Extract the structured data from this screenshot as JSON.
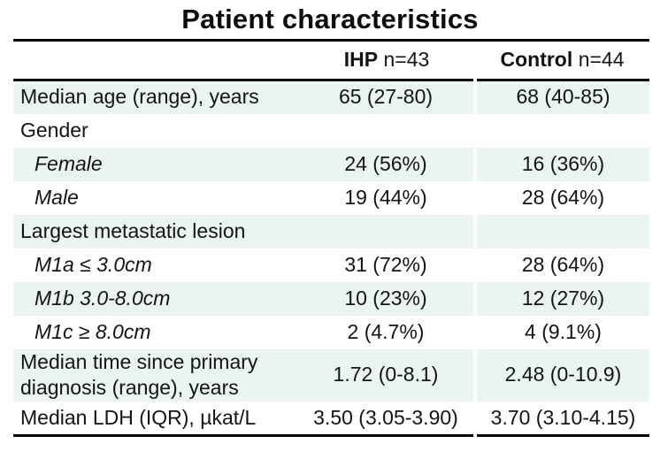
{
  "title": "Patient characteristics",
  "colors": {
    "row_highlight": "#eaf4f3",
    "text": "#141414",
    "rule": "#000000"
  },
  "chart_data": {
    "type": "table",
    "title": "Patient characteristics",
    "columns": [
      {
        "bold": "",
        "rest": ""
      },
      {
        "bold": "IHP",
        "rest": "n=43"
      },
      {
        "bold": "Control",
        "rest": "n=44"
      }
    ],
    "rows": [
      {
        "label": "Median age (range), years",
        "ihp": "65 (27-80)",
        "control": "68 (40-85)",
        "sub": false
      },
      {
        "label": "Gender",
        "ihp": "",
        "control": "",
        "sub": false
      },
      {
        "label": "Female",
        "ihp": "24 (56%)",
        "control": "16 (36%)",
        "sub": true
      },
      {
        "label": "Male",
        "ihp": "19 (44%)",
        "control": "28 (64%)",
        "sub": true
      },
      {
        "label": "Largest metastatic lesion",
        "ihp": "",
        "control": "",
        "sub": false
      },
      {
        "label": "M1a ≤ 3.0cm",
        "ihp": "31 (72%)",
        "control": "28 (64%)",
        "sub": true
      },
      {
        "label": "M1b 3.0-8.0cm",
        "ihp": "10 (23%)",
        "control": "12 (27%)",
        "sub": true
      },
      {
        "label": "M1c ≥ 8.0cm",
        "ihp": "2 (4.7%)",
        "control": "4 (9.1%)",
        "sub": true
      },
      {
        "label": "Median time since primary diagnosis (range), years",
        "ihp": "1.72 (0-8.1)",
        "control": "2.48 (0-10.9)",
        "sub": false
      },
      {
        "label": "Median LDH (IQR), µkat/L",
        "ihp": "3.50 (3.05-3.90)",
        "control": "3.70 (3.10-4.15)",
        "sub": false
      }
    ]
  }
}
